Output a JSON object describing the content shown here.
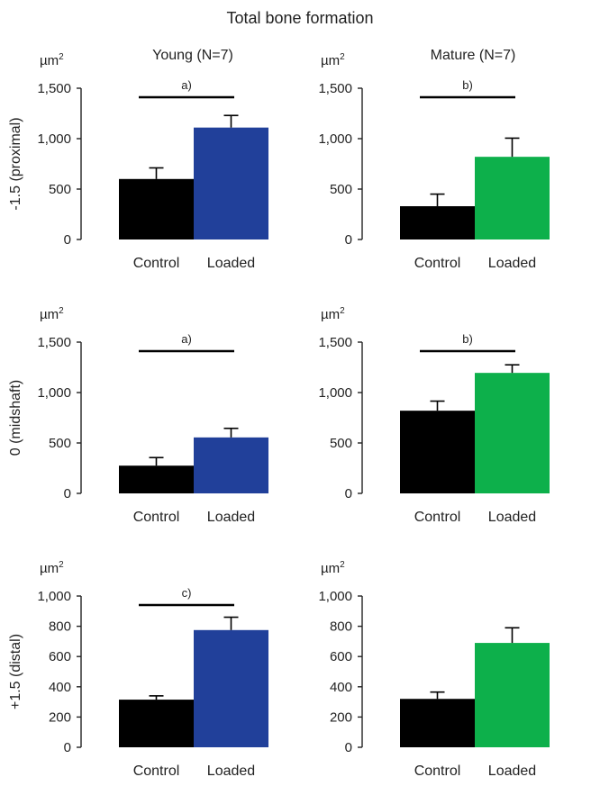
{
  "figure": {
    "title": "Total bone formation",
    "columns": [
      "Young (N=7)",
      "Mature (N=7)"
    ],
    "rows": [
      "-1.5 (proximal)",
      "0 (midshaft)",
      "+1.5 (distal)"
    ],
    "unit_base": "µm",
    "unit_exp": "2",
    "colors": {
      "control": "#000000",
      "young_loaded": "#21409a",
      "mature_loaded": "#0db04b",
      "axis": "#222222"
    }
  },
  "chart_data": [
    {
      "type": "bar",
      "group": "Young (N=7)",
      "position": "-1.5 (proximal)",
      "categories": [
        "Control",
        "Loaded"
      ],
      "values": [
        600,
        1110
      ],
      "errors": [
        110,
        120
      ],
      "ylim": [
        0,
        1500
      ],
      "yticks": [
        0,
        500,
        1000,
        1500
      ],
      "ytick_labels": [
        "0",
        "500",
        "1,000",
        "1,500"
      ],
      "ylabel": "-1.5 (proximal)",
      "sig_label": "a)",
      "loaded_color": "#21409a"
    },
    {
      "type": "bar",
      "group": "Mature (N=7)",
      "position": "-1.5 (proximal)",
      "categories": [
        "Control",
        "Loaded"
      ],
      "values": [
        330,
        820
      ],
      "errors": [
        120,
        185
      ],
      "ylim": [
        0,
        1500
      ],
      "yticks": [
        0,
        500,
        1000,
        1500
      ],
      "ytick_labels": [
        "0",
        "500",
        "1,000",
        "1,500"
      ],
      "ylabel": "",
      "sig_label": "b)",
      "loaded_color": "#0db04b"
    },
    {
      "type": "bar",
      "group": "Young (N=7)",
      "position": "0 (midshaft)",
      "categories": [
        "Control",
        "Loaded"
      ],
      "values": [
        275,
        555
      ],
      "errors": [
        80,
        90
      ],
      "ylim": [
        0,
        1500
      ],
      "yticks": [
        0,
        500,
        1000,
        1500
      ],
      "ytick_labels": [
        "0",
        "500",
        "1,000",
        "1,500"
      ],
      "ylabel": "0 (midshaft)",
      "sig_label": "a)",
      "loaded_color": "#21409a"
    },
    {
      "type": "bar",
      "group": "Mature (N=7)",
      "position": "0 (midshaft)",
      "categories": [
        "Control",
        "Loaded"
      ],
      "values": [
        820,
        1195
      ],
      "errors": [
        95,
        80
      ],
      "ylim": [
        0,
        1500
      ],
      "yticks": [
        0,
        500,
        1000,
        1500
      ],
      "ytick_labels": [
        "0",
        "500",
        "1,000",
        "1,500"
      ],
      "ylabel": "",
      "sig_label": "b)",
      "loaded_color": "#0db04b"
    },
    {
      "type": "bar",
      "group": "Young (N=7)",
      "position": "+1.5 (distal)",
      "categories": [
        "Control",
        "Loaded"
      ],
      "values": [
        315,
        775
      ],
      "errors": [
        25,
        85
      ],
      "ylim": [
        0,
        1000
      ],
      "yticks": [
        0,
        200,
        400,
        600,
        800,
        1000
      ],
      "ytick_labels": [
        "0",
        "200",
        "400",
        "600",
        "800",
        "1,000"
      ],
      "ylabel": "+1.5 (distal)",
      "sig_label": "c)",
      "loaded_color": "#21409a"
    },
    {
      "type": "bar",
      "group": "Mature (N=7)",
      "position": "+1.5 (distal)",
      "categories": [
        "Control",
        "Loaded"
      ],
      "values": [
        320,
        690
      ],
      "errors": [
        45,
        100
      ],
      "ylim": [
        0,
        1000
      ],
      "yticks": [
        0,
        200,
        400,
        600,
        800,
        1000
      ],
      "ytick_labels": [
        "0",
        "200",
        "400",
        "600",
        "800",
        "1,000"
      ],
      "ylabel": "",
      "sig_label": "",
      "loaded_color": "#0db04b"
    }
  ]
}
